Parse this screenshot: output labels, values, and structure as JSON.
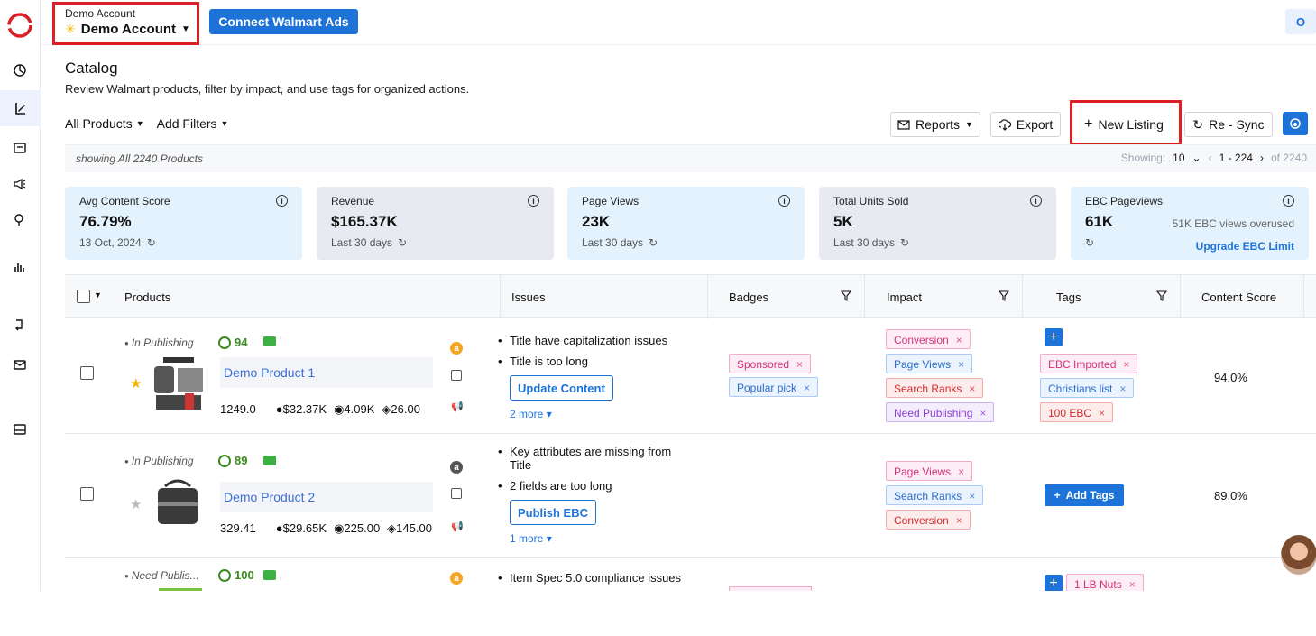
{
  "topbar": {
    "account_small": "Demo Account",
    "account_name": "Demo Account",
    "connect_button": "Connect Walmart Ads",
    "user_initial": "O"
  },
  "page": {
    "title": "Catalog",
    "subtitle": "Review Walmart products, filter by impact, and use tags for organized actions."
  },
  "filters": {
    "all_products": "All Products",
    "add_filters": "Add Filters"
  },
  "toolbar": {
    "reports": "Reports",
    "export": "Export",
    "new_listing": "New Listing",
    "resync": "Re - Sync"
  },
  "showing": {
    "left": "showing All 2240 Products",
    "label": "Showing:",
    "page_size": "10",
    "range": "1 - 224",
    "total": "of 2240"
  },
  "cards": [
    {
      "label": "Avg Content Score",
      "value": "76.79%",
      "sub": "13 Oct, 2024"
    },
    {
      "label": "Revenue",
      "value": "$165.37K",
      "sub": "Last 30 days"
    },
    {
      "label": "Page Views",
      "value": "23K",
      "sub": "Last 30 days"
    },
    {
      "label": "Total Units Sold",
      "value": "5K",
      "sub": "Last 30 days"
    },
    {
      "label": "EBC Pageviews",
      "value": "61K",
      "note": "51K EBC views overused",
      "link": "Upgrade EBC Limit"
    }
  ],
  "table": {
    "headers": [
      "Products",
      "Issues",
      "Badges",
      "Impact",
      "Tags",
      "Content Score"
    ],
    "rows": [
      {
        "status": "In Publishing",
        "score": "94",
        "name": "Demo Product 1",
        "price": "1249.0",
        "revenue": "$32.37K",
        "views": "4.09K",
        "units": "26.00",
        "issues": [
          "Title have capitalization issues",
          "Title is too long"
        ],
        "action": "Update Content",
        "more": "2 more",
        "badges": [
          "Sponsored",
          "Popular pick"
        ],
        "impact": [
          "Conversion",
          "Page Views",
          "Search Ranks",
          "Need Publishing"
        ],
        "tags": [
          "EBC Imported",
          "Christians list",
          "100 EBC"
        ],
        "content_score": "94.0%"
      },
      {
        "status": "In Publishing",
        "score": "89",
        "name": "Demo Product 2",
        "price": "329.41",
        "revenue": "$29.65K",
        "views": "225.00",
        "units": "145.00",
        "issues": [
          "Key attributes are missing from Title",
          "2 fields are too long"
        ],
        "action": "Publish EBC",
        "more": "1 more",
        "impact": [
          "Page Views",
          "Search Ranks",
          "Conversion"
        ],
        "add_tags": "Add Tags",
        "content_score": "89.0%"
      },
      {
        "status": "Need Publis...",
        "score": "100",
        "issues": [
          "Item Spec 5.0 compliance issues"
        ],
        "tags": [
          "1 LB Nuts"
        ]
      }
    ]
  },
  "colors": {
    "primary": "#1e73d9",
    "highlight": "#dc1f26",
    "score_green": "#3a8a1f"
  }
}
